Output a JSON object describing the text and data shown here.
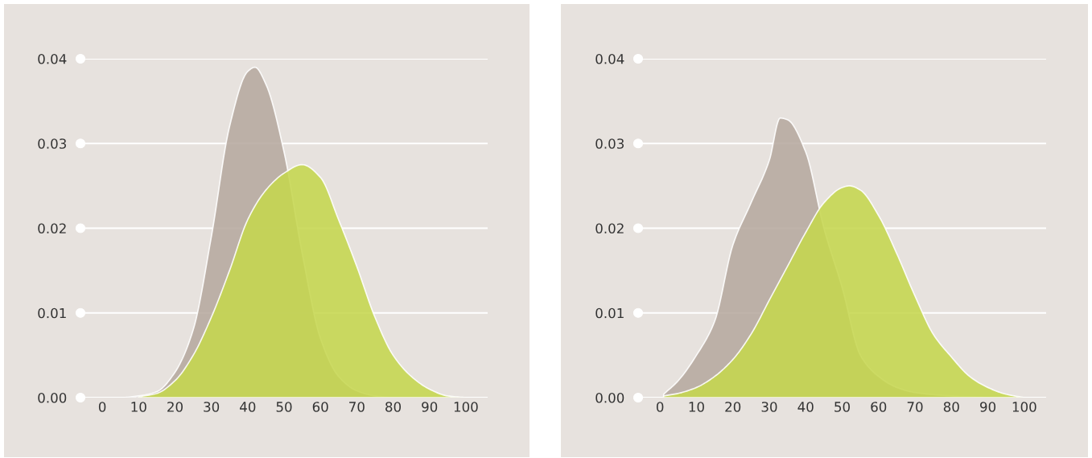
{
  "chart_data": [
    {
      "type": "area",
      "xlim": [
        -6,
        106
      ],
      "ylim": [
        0,
        0.04
      ],
      "xticks": [
        0,
        10,
        20,
        30,
        40,
        50,
        60,
        70,
        80,
        90,
        100
      ],
      "yticks": [
        {
          "value": 0,
          "label": "0.00"
        },
        {
          "value": 0.01,
          "label": "0.01"
        },
        {
          "value": 0.02,
          "label": "0.02"
        },
        {
          "value": 0.03,
          "label": "0.03"
        },
        {
          "value": 0.04,
          "label": "0.04"
        }
      ],
      "grid": "y",
      "legend": false,
      "series": [
        {
          "color": "#b6a89f",
          "x": [
            0,
            5,
            10,
            15,
            20,
            25,
            30,
            35,
            40,
            42,
            45,
            50,
            55,
            60,
            65,
            70,
            75,
            80,
            85
          ],
          "values": [
            0,
            0,
            0.0002,
            0.0007,
            0.003,
            0.008,
            0.019,
            0.032,
            0.0385,
            0.039,
            0.037,
            0.029,
            0.017,
            0.007,
            0.0025,
            0.0008,
            0.0002,
            0,
            0
          ]
        },
        {
          "color": "#c5d64f",
          "x": [
            10,
            15,
            20,
            25,
            30,
            35,
            40,
            45,
            50,
            55,
            60,
            65,
            70,
            75,
            80,
            85,
            90,
            95,
            100
          ],
          "values": [
            0.0001,
            0.0005,
            0.002,
            0.005,
            0.0095,
            0.015,
            0.021,
            0.0245,
            0.0265,
            0.0275,
            0.026,
            0.021,
            0.0155,
            0.0095,
            0.005,
            0.0025,
            0.001,
            0.0002,
            0
          ]
        }
      ]
    },
    {
      "type": "area",
      "xlim": [
        -6,
        106
      ],
      "ylim": [
        0,
        0.04
      ],
      "xticks": [
        0,
        10,
        20,
        30,
        40,
        50,
        60,
        70,
        80,
        90,
        100
      ],
      "yticks": [
        {
          "value": 0,
          "label": "0.00"
        },
        {
          "value": 0.01,
          "label": "0.01"
        },
        {
          "value": 0.02,
          "label": "0.02"
        },
        {
          "value": 0.03,
          "label": "0.03"
        },
        {
          "value": 0.04,
          "label": "0.04"
        }
      ],
      "grid": "y",
      "legend": false,
      "series": [
        {
          "color": "#b6a89f",
          "x": [
            1,
            5,
            10,
            15,
            20,
            25,
            30,
            33,
            35,
            40,
            45,
            50,
            55,
            60,
            65,
            70,
            80,
            90
          ],
          "values": [
            0.0004,
            0.002,
            0.005,
            0.009,
            0.018,
            0.023,
            0.028,
            0.033,
            0.0328,
            0.029,
            0.02,
            0.013,
            0.005,
            0.0025,
            0.0012,
            0.0006,
            0.0002,
            0
          ]
        },
        {
          "color": "#c5d64f",
          "x": [
            1,
            5,
            10,
            15,
            20,
            25,
            30,
            35,
            40,
            45,
            50,
            52,
            55,
            60,
            65,
            70,
            75,
            80,
            85,
            90,
            95,
            100
          ],
          "values": [
            0.0002,
            0.0005,
            0.0012,
            0.0025,
            0.0045,
            0.0075,
            0.0115,
            0.0155,
            0.0195,
            0.023,
            0.0248,
            0.025,
            0.0245,
            0.0215,
            0.017,
            0.012,
            0.0075,
            0.0048,
            0.0025,
            0.0012,
            0.0004,
            0
          ]
        }
      ]
    }
  ]
}
